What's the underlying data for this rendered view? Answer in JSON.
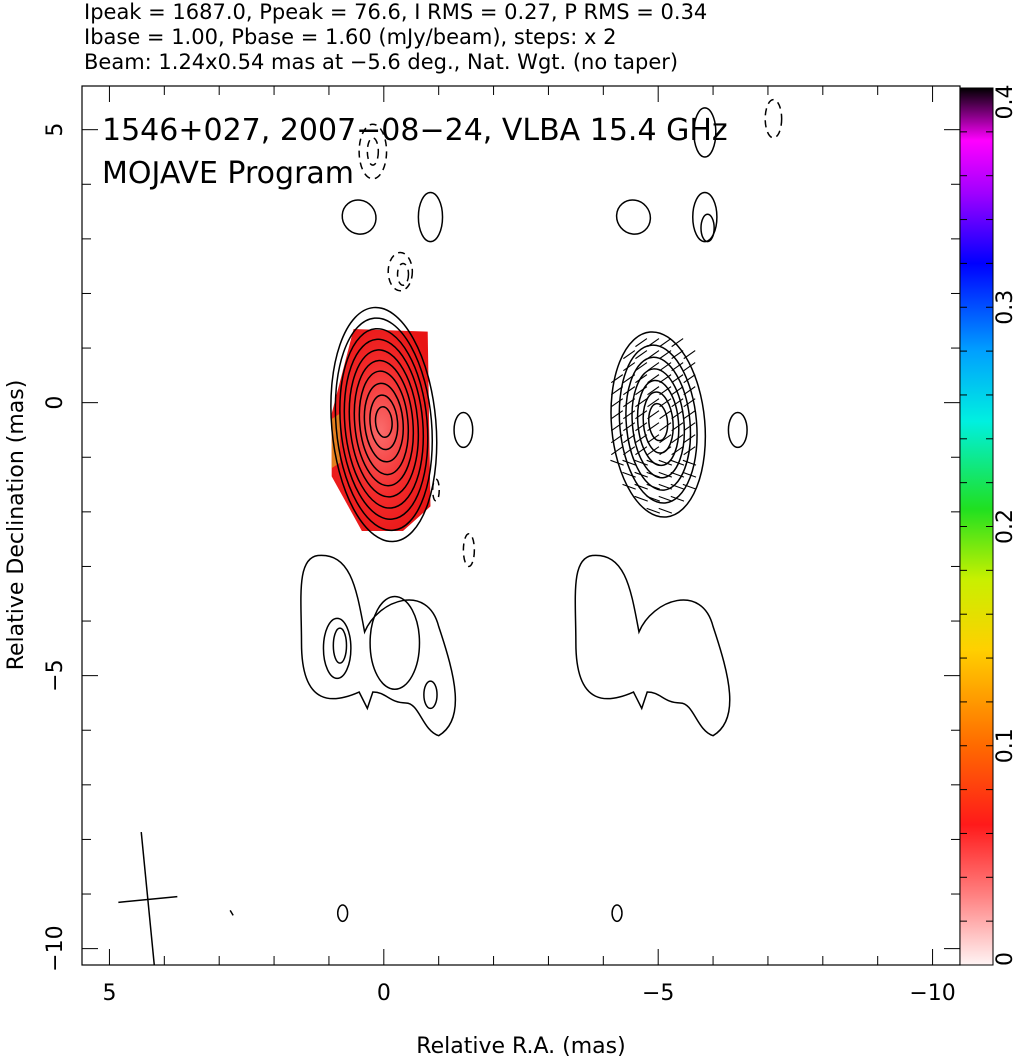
{
  "header": {
    "line1": "Ipeak = 1687.0, Ppeak = 76.6, I RMS = 0.27, P RMS = 0.34",
    "line2": "Ibase = 1.00, Pbase = 1.60 (mJy/beam), steps: x 2",
    "line3": "Beam: 1.24x0.54 mas at −5.6 deg., Nat. Wgt. (no taper)"
  },
  "chart_data": {
    "type": "heatmap",
    "title_line1": "1546+027, 2007−08−24, VLBA 15.4 GHz",
    "title_line2": "MOJAVE Program",
    "xlabel": "Relative R.A. (mas)",
    "ylabel": "Relative Declination (mas)",
    "xlim": [
      5.5,
      -10.5
    ],
    "ylim": [
      -10.3,
      5.8
    ],
    "x_ticks": [
      5,
      0,
      -5,
      -10
    ],
    "x_tick_labels": [
      "5",
      "0",
      "−5",
      "−10"
    ],
    "y_ticks": [
      5,
      0,
      -5,
      -10
    ],
    "y_tick_labels": [
      "5",
      "0",
      "−5",
      "−10"
    ],
    "colorbar": {
      "range": [
        0,
        0.4
      ],
      "ticks": [
        0,
        0.1,
        0.2,
        0.3,
        0.4
      ],
      "tick_labels": [
        "0",
        "0.1",
        "0.2",
        "0.3",
        "0.4"
      ]
    },
    "panels": [
      {
        "center_x": 0,
        "core_levels": [
          {
            "rx": 0.95,
            "ry": 2.15
          },
          {
            "rx": 0.87,
            "ry": 1.95
          },
          {
            "rx": 0.79,
            "ry": 1.75
          },
          {
            "rx": 0.71,
            "ry": 1.55
          },
          {
            "rx": 0.62,
            "ry": 1.35
          },
          {
            "rx": 0.53,
            "ry": 1.15
          },
          {
            "rx": 0.44,
            "ry": 0.95
          },
          {
            "rx": 0.35,
            "ry": 0.72
          },
          {
            "rx": 0.25,
            "ry": 0.5
          },
          {
            "rx": 0.15,
            "ry": 0.28
          }
        ],
        "polarization_fill": true,
        "evpa_ticks": false
      },
      {
        "center_x": -5,
        "core_levels": [
          {
            "rx": 0.85,
            "ry": 1.7
          },
          {
            "rx": 0.7,
            "ry": 1.45
          },
          {
            "rx": 0.58,
            "ry": 1.22
          },
          {
            "rx": 0.47,
            "ry": 1.0
          },
          {
            "rx": 0.37,
            "ry": 0.78
          },
          {
            "rx": 0.27,
            "ry": 0.56
          },
          {
            "rx": 0.17,
            "ry": 0.34
          }
        ],
        "polarization_fill": false,
        "evpa_ticks": true
      }
    ],
    "beam": {
      "major_mas": 1.24,
      "minor_mas": 0.54,
      "pa_deg": -5.6,
      "center": [
        4.3,
        -9.1
      ]
    }
  }
}
